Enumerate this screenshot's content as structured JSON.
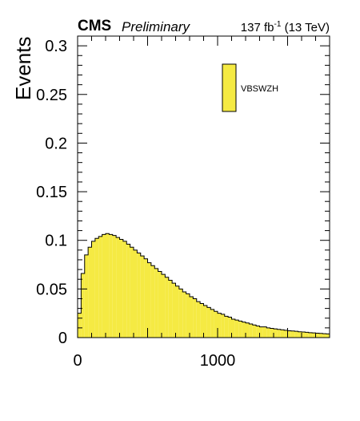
{
  "header": {
    "experiment": "CMS",
    "status": "Preliminary",
    "lumi_value": "137 fb",
    "lumi_exp": "-1",
    "energy": " (13 TeV)"
  },
  "chart_data": {
    "type": "bar",
    "histogram": true,
    "xlabel": "",
    "ylabel": "Events",
    "xlim": [
      0,
      1800
    ],
    "ylim": [
      0,
      0.31
    ],
    "xticks": [
      0,
      1000
    ],
    "xtick_labels": [
      "0",
      "1000"
    ],
    "yticks": [
      0,
      0.05,
      0.1,
      0.15,
      0.2,
      0.25,
      0.3
    ],
    "ytick_labels": [
      "0",
      "0.05",
      "0.1",
      "0.15",
      "0.2",
      "0.25",
      "0.3"
    ],
    "bin_width": 25,
    "legend": {
      "placement": "top-right",
      "entries": [
        "VBSWZH"
      ]
    },
    "colors": {
      "fill": "#f5ea43",
      "line": "#000000"
    },
    "series": [
      {
        "name": "VBSWZH",
        "values": [
          0.025,
          0.066,
          0.085,
          0.093,
          0.099,
          0.102,
          0.104,
          0.106,
          0.107,
          0.106,
          0.105,
          0.103,
          0.101,
          0.099,
          0.096,
          0.093,
          0.09,
          0.087,
          0.084,
          0.081,
          0.077,
          0.074,
          0.071,
          0.068,
          0.065,
          0.062,
          0.059,
          0.056,
          0.053,
          0.05,
          0.047,
          0.045,
          0.042,
          0.04,
          0.037,
          0.035,
          0.033,
          0.031,
          0.029,
          0.027,
          0.025,
          0.024,
          0.022,
          0.021,
          0.019,
          0.018,
          0.017,
          0.016,
          0.015,
          0.014,
          0.013,
          0.012,
          0.011,
          0.011,
          0.01,
          0.0095,
          0.009,
          0.0085,
          0.008,
          0.0075,
          0.007,
          0.0068,
          0.0065,
          0.006,
          0.0058,
          0.0055,
          0.005,
          0.0048,
          0.0045,
          0.0043,
          0.004,
          0.0038,
          0.019
        ]
      }
    ]
  }
}
